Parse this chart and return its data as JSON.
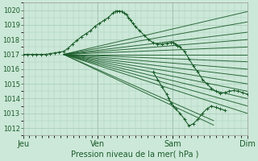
{
  "xlabel": "Pression niveau de la mer( hPa )",
  "ylim": [
    1011.5,
    1020.5
  ],
  "yticks": [
    1012,
    1013,
    1014,
    1015,
    1016,
    1017,
    1018,
    1019,
    1020
  ],
  "xtick_labels": [
    "Jeu",
    "Ven",
    "Sam",
    "Dim"
  ],
  "xtick_positions": [
    0.0,
    0.333,
    0.667,
    1.0
  ],
  "bg_color": "#cce8d8",
  "grid_color": "#aacfbc",
  "line_color": "#1a5c2a",
  "xlim": [
    0.0,
    1.0
  ],
  "fan_lines": [
    {
      "x": [
        0.18,
        1.0
      ],
      "y": [
        1017.0,
        1019.9
      ]
    },
    {
      "x": [
        0.18,
        1.0
      ],
      "y": [
        1017.0,
        1019.2
      ]
    },
    {
      "x": [
        0.18,
        1.0
      ],
      "y": [
        1017.0,
        1018.5
      ]
    },
    {
      "x": [
        0.18,
        1.0
      ],
      "y": [
        1017.0,
        1018.0
      ]
    },
    {
      "x": [
        0.18,
        1.0
      ],
      "y": [
        1017.0,
        1017.5
      ]
    },
    {
      "x": [
        0.18,
        1.0
      ],
      "y": [
        1017.0,
        1017.0
      ]
    },
    {
      "x": [
        0.18,
        1.0
      ],
      "y": [
        1017.0,
        1016.5
      ]
    },
    {
      "x": [
        0.18,
        1.0
      ],
      "y": [
        1017.0,
        1016.0
      ]
    },
    {
      "x": [
        0.18,
        1.0
      ],
      "y": [
        1017.0,
        1015.5
      ]
    },
    {
      "x": [
        0.18,
        1.0
      ],
      "y": [
        1017.0,
        1015.0
      ]
    },
    {
      "x": [
        0.18,
        1.0
      ],
      "y": [
        1017.0,
        1014.5
      ]
    },
    {
      "x": [
        0.18,
        1.0
      ],
      "y": [
        1017.0,
        1014.0
      ]
    },
    {
      "x": [
        0.18,
        1.0
      ],
      "y": [
        1017.0,
        1013.5
      ]
    },
    {
      "x": [
        0.18,
        1.0
      ],
      "y": [
        1017.0,
        1013.0
      ]
    },
    {
      "x": [
        0.18,
        0.85
      ],
      "y": [
        1017.0,
        1012.2
      ]
    },
    {
      "x": [
        0.18,
        0.85
      ],
      "y": [
        1017.0,
        1012.5
      ]
    }
  ],
  "main_line_x": [
    0.0,
    0.02,
    0.04,
    0.06,
    0.08,
    0.1,
    0.12,
    0.14,
    0.16,
    0.18,
    0.2,
    0.22,
    0.24,
    0.26,
    0.28,
    0.3,
    0.32,
    0.34,
    0.36,
    0.38,
    0.4,
    0.41,
    0.42,
    0.43,
    0.44,
    0.45,
    0.46,
    0.47,
    0.48,
    0.49,
    0.5,
    0.52,
    0.54,
    0.56,
    0.58,
    0.6,
    0.62,
    0.64,
    0.66,
    0.67,
    0.68,
    0.69,
    0.7,
    0.72,
    0.74,
    0.76,
    0.78,
    0.8,
    0.82,
    0.84,
    0.86,
    0.88,
    0.9,
    0.92,
    0.94,
    0.96,
    0.98,
    1.0
  ],
  "main_line_y": [
    1017.0,
    1017.0,
    1017.0,
    1017.0,
    1017.0,
    1017.0,
    1017.05,
    1017.1,
    1017.15,
    1017.2,
    1017.4,
    1017.7,
    1017.95,
    1018.2,
    1018.4,
    1018.6,
    1018.9,
    1019.1,
    1019.3,
    1019.5,
    1019.8,
    1019.9,
    1019.95,
    1019.95,
    1019.9,
    1019.8,
    1019.7,
    1019.5,
    1019.3,
    1019.1,
    1018.9,
    1018.6,
    1018.3,
    1018.0,
    1017.8,
    1017.7,
    1017.7,
    1017.75,
    1017.8,
    1017.8,
    1017.7,
    1017.6,
    1017.5,
    1017.2,
    1016.7,
    1016.2,
    1015.8,
    1015.3,
    1015.0,
    1014.7,
    1014.5,
    1014.35,
    1014.4,
    1014.5,
    1014.55,
    1014.5,
    1014.4,
    1014.3
  ],
  "detail_line_x": [
    0.58,
    0.6,
    0.62,
    0.64,
    0.65,
    0.66,
    0.67,
    0.68,
    0.7,
    0.72,
    0.74,
    0.76,
    0.78,
    0.8,
    0.82,
    0.84,
    0.86,
    0.88,
    0.9
  ],
  "detail_line_y": [
    1015.8,
    1015.3,
    1014.8,
    1014.3,
    1014.0,
    1013.7,
    1013.5,
    1013.3,
    1013.0,
    1012.6,
    1012.15,
    1012.3,
    1012.6,
    1013.0,
    1013.3,
    1013.5,
    1013.4,
    1013.3,
    1013.2
  ]
}
